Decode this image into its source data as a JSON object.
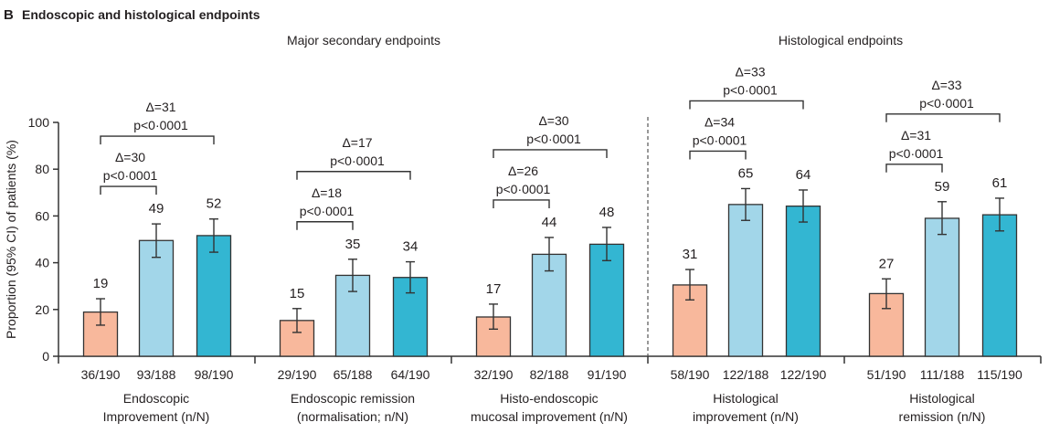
{
  "panel_label": "B",
  "panel_title": "Endoscopic and histological endpoints",
  "section_headings": [
    "Major secondary endpoints",
    "Histological endpoints"
  ],
  "colors": {
    "bar_1": "#f8b89c",
    "bar_2": "#a2d6e9",
    "bar_3": "#33b6d2",
    "stroke": "#333333"
  },
  "chart_data": {
    "type": "bar",
    "ylabel": "Proportion (95% CI) of patients (%)",
    "ylim": [
      0,
      100
    ],
    "yticks": [
      0,
      20,
      40,
      60,
      80,
      100
    ],
    "grid": false,
    "legend": "none",
    "groups": [
      {
        "label": [
          "Endoscopic",
          "Improvement (n/N)"
        ],
        "section": "Major secondary endpoints",
        "bars": [
          {
            "n_label": "36/190",
            "value": 18.9,
            "label": "19",
            "ci": [
              13.3,
              24.6
            ]
          },
          {
            "n_label": "93/188",
            "value": 49.5,
            "label": "49",
            "ci": [
              42.3,
              56.6
            ]
          },
          {
            "n_label": "98/190",
            "value": 51.6,
            "label": "52",
            "ci": [
              44.5,
              58.7
            ]
          }
        ],
        "comparisons": [
          {
            "from": 0,
            "to": 1,
            "delta": "Δ=30",
            "p": "p<0·0001"
          },
          {
            "from": 0,
            "to": 2,
            "delta": "Δ=31",
            "p": "p<0·0001"
          }
        ]
      },
      {
        "label": [
          "Endoscopic remission",
          "(normalisation; n/N)"
        ],
        "section": "Major secondary endpoints",
        "bars": [
          {
            "n_label": "29/190",
            "value": 15.3,
            "label": "15",
            "ci": [
              10.2,
              20.4
            ]
          },
          {
            "n_label": "65/188",
            "value": 34.6,
            "label": "35",
            "ci": [
              27.7,
              41.5
            ]
          },
          {
            "n_label": "64/190",
            "value": 33.7,
            "label": "34",
            "ci": [
              27.1,
              40.4
            ]
          }
        ],
        "comparisons": [
          {
            "from": 0,
            "to": 1,
            "delta": "Δ=18",
            "p": "p<0·0001"
          },
          {
            "from": 0,
            "to": 2,
            "delta": "Δ=17",
            "p": "p<0·0001"
          }
        ]
      },
      {
        "label": [
          "Histo-endoscopic",
          "mucosal improvement (n/N)"
        ],
        "section": "Major secondary endpoints",
        "bars": [
          {
            "n_label": "32/190",
            "value": 16.8,
            "label": "17",
            "ci": [
              11.6,
              22.3
            ]
          },
          {
            "n_label": "82/188",
            "value": 43.6,
            "label": "44",
            "ci": [
              36.5,
              50.8
            ]
          },
          {
            "n_label": "91/190",
            "value": 47.9,
            "label": "48",
            "ci": [
              40.9,
              55.1
            ]
          }
        ],
        "comparisons": [
          {
            "from": 0,
            "to": 1,
            "delta": "Δ=26",
            "p": "p<0·0001"
          },
          {
            "from": 0,
            "to": 2,
            "delta": "Δ=30",
            "p": "p<0·0001"
          }
        ]
      },
      {
        "label": [
          "Histological",
          "improvement (n/N)"
        ],
        "section": "Histological endpoints",
        "bars": [
          {
            "n_label": "58/190",
            "value": 30.5,
            "label": "31",
            "ci": [
              24.1,
              37.1
            ]
          },
          {
            "n_label": "122/188",
            "value": 64.9,
            "label": "65",
            "ci": [
              58.1,
              71.7
            ]
          },
          {
            "n_label": "122/190",
            "value": 64.2,
            "label": "64",
            "ci": [
              57.4,
              71.1
            ]
          }
        ],
        "comparisons": [
          {
            "from": 0,
            "to": 1,
            "delta": "Δ=34",
            "p": "p<0·0001"
          },
          {
            "from": 0,
            "to": 2,
            "delta": "Δ=33",
            "p": "p<0·0001"
          }
        ]
      },
      {
        "label": [
          "Histological",
          "remission (n/N)"
        ],
        "section": "Histological endpoints",
        "bars": [
          {
            "n_label": "51/190",
            "value": 26.8,
            "label": "27",
            "ci": [
              20.4,
              33.1
            ]
          },
          {
            "n_label": "111/188",
            "value": 59.0,
            "label": "59",
            "ci": [
              52.1,
              66.1
            ]
          },
          {
            "n_label": "115/190",
            "value": 60.5,
            "label": "61",
            "ci": [
              53.6,
              67.6
            ]
          }
        ],
        "comparisons": [
          {
            "from": 0,
            "to": 1,
            "delta": "Δ=31",
            "p": "p<0·0001"
          },
          {
            "from": 0,
            "to": 2,
            "delta": "Δ=33",
            "p": "p<0·0001"
          }
        ]
      }
    ]
  }
}
